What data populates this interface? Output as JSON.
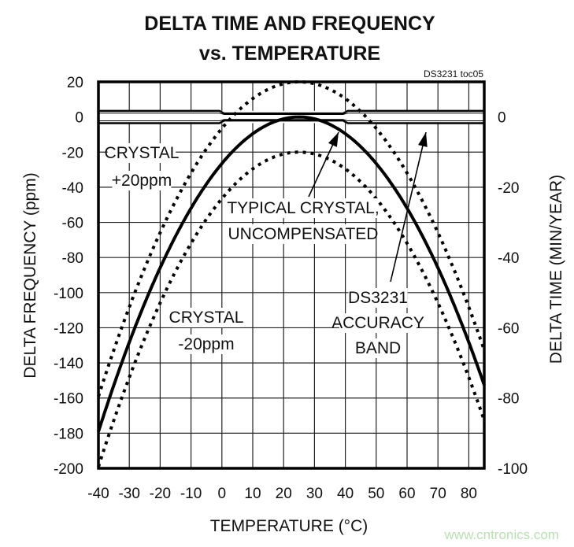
{
  "chart_data": {
    "type": "line",
    "title": "DELTA TIME AND FREQUENCY",
    "subtitle": "vs. TEMPERATURE",
    "figure_id": "DS3231 toc05",
    "xlabel": "TEMPERATURE (°C)",
    "ylabel": "DELTA FREQUENCY (ppm)",
    "y2label": "DELTA TIME (MIN/YEAR)",
    "xlim": [
      -40,
      85
    ],
    "ylim": [
      -200,
      20
    ],
    "y2lim": [
      -100,
      10
    ],
    "x_ticks": [
      "-40",
      "-30",
      "-20",
      "-10",
      "0",
      "10",
      "20",
      "30",
      "40",
      "50",
      "60",
      "70",
      "80"
    ],
    "y_ticks": [
      "20",
      "0",
      "-20",
      "-40",
      "-60",
      "-80",
      "-100",
      "-120",
      "-140",
      "-160",
      "-180",
      "-200"
    ],
    "y2_ticks": [
      "0",
      "-20",
      "-40",
      "-60",
      "-80",
      "-100"
    ],
    "grid": true,
    "series": [
      {
        "name": "TYPICAL CRYSTAL, UNCOMPENSATED",
        "style": "solid",
        "vertex_temp": 25,
        "coefficient": -0.0424,
        "offset": 0
      },
      {
        "name": "CRYSTAL +20ppm",
        "style": "dotted",
        "vertex_temp": 25,
        "coefficient": -0.0424,
        "offset": 20
      },
      {
        "name": "CRYSTAL -20ppm",
        "style": "dotted",
        "vertex_temp": 25,
        "coefficient": -0.0424,
        "offset": -20
      }
    ],
    "accuracy_band": {
      "name": "DS3231 ACCURACY BAND",
      "inner_range": [
        0,
        40
      ],
      "inner_ppm": 2,
      "outer_ppm": 3.5
    },
    "annotations": {
      "crystal_plus": [
        "CRYSTAL",
        "+20ppm"
      ],
      "crystal_minus": [
        "CRYSTAL",
        "-20ppm"
      ],
      "typical": [
        "TYPICAL CRYSTAL,",
        "UNCOMPENSATED"
      ],
      "band": [
        "DS3231",
        "ACCURACY",
        "BAND"
      ]
    }
  },
  "watermark": "www.cntronics.com"
}
